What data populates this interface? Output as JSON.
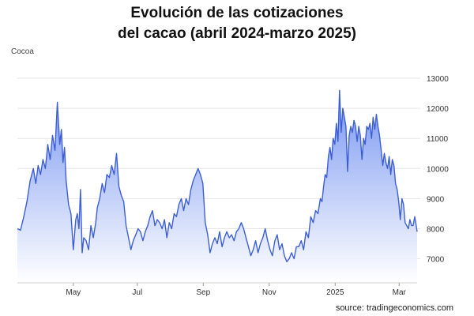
{
  "chart_data": {
    "type": "area",
    "title": "Evolución de las cotizaciones",
    "subtitle": "del cacao (abril 2024-marzo 2025)",
    "series_label": "Cocoa",
    "source": "source: tradingeconomics.com",
    "xlabel": "",
    "ylabel": "",
    "ylim": [
      6200,
      13500
    ],
    "y_ticks": [
      7000,
      8000,
      9000,
      10000,
      11000,
      12000,
      13000
    ],
    "y_axis_position": "right",
    "grid": "horizontal",
    "legend": "none",
    "colors": {
      "line": "#3d5fd6",
      "fill_top": "#6f8ff0",
      "fill_bottom": "#ffffff",
      "grid": "#e6e6e6"
    },
    "x_ticks": [
      {
        "label": "May",
        "t": 0.14
      },
      {
        "label": "Jul",
        "t": 0.3
      },
      {
        "label": "Sep",
        "t": 0.465
      },
      {
        "label": "Nov",
        "t": 0.63
      },
      {
        "label": "2025",
        "t": 0.795
      },
      {
        "label": "Mar",
        "t": 0.955
      }
    ],
    "series": [
      {
        "t": [
          0.0,
          0.008,
          0.016,
          0.024,
          0.032,
          0.04,
          0.046,
          0.052,
          0.058,
          0.064,
          0.07,
          0.076,
          0.082,
          0.088,
          0.094,
          0.1,
          0.106,
          0.11,
          0.114,
          0.118,
          0.122,
          0.128,
          0.134,
          0.14,
          0.146,
          0.15,
          0.154,
          0.158,
          0.162,
          0.166,
          0.172,
          0.178,
          0.184,
          0.19,
          0.196,
          0.2,
          0.206,
          0.212,
          0.218,
          0.224,
          0.23,
          0.236,
          0.242,
          0.248,
          0.254,
          0.26,
          0.266,
          0.272,
          0.278,
          0.284,
          0.29,
          0.296,
          0.302,
          0.308,
          0.314,
          0.32,
          0.326,
          0.332,
          0.338,
          0.344,
          0.35,
          0.356,
          0.362,
          0.368,
          0.374,
          0.38,
          0.386,
          0.392,
          0.398,
          0.404,
          0.41,
          0.416,
          0.422,
          0.428,
          0.434,
          0.44,
          0.446,
          0.452,
          0.458,
          0.464,
          0.47,
          0.476,
          0.482,
          0.488,
          0.494,
          0.5,
          0.506,
          0.512,
          0.518,
          0.524,
          0.53,
          0.536,
          0.542,
          0.548,
          0.554,
          0.56,
          0.566,
          0.572,
          0.578,
          0.584,
          0.59,
          0.596,
          0.602,
          0.608,
          0.614,
          0.62,
          0.626,
          0.632,
          0.638,
          0.644,
          0.65,
          0.656,
          0.662,
          0.668,
          0.674,
          0.68,
          0.686,
          0.692,
          0.698,
          0.704,
          0.71,
          0.716,
          0.722,
          0.728,
          0.734,
          0.74,
          0.746,
          0.752,
          0.758,
          0.762,
          0.766,
          0.77,
          0.774,
          0.778,
          0.782,
          0.786,
          0.79,
          0.794,
          0.798,
          0.802,
          0.806,
          0.81,
          0.814,
          0.818,
          0.822,
          0.826,
          0.83,
          0.834,
          0.838,
          0.842,
          0.846,
          0.85,
          0.854,
          0.858,
          0.862,
          0.866,
          0.87,
          0.874,
          0.878,
          0.882,
          0.886,
          0.89,
          0.894,
          0.898,
          0.902,
          0.906,
          0.91,
          0.914,
          0.918,
          0.922,
          0.926,
          0.93,
          0.934,
          0.938,
          0.942,
          0.946,
          0.95,
          0.954,
          0.958,
          0.962,
          0.966,
          0.97,
          0.974,
          0.978,
          0.982,
          0.986,
          0.99,
          0.994,
          1.0
        ],
        "values": [
          8000,
          7950,
          8400,
          8900,
          9600,
          10000,
          9500,
          10100,
          9800,
          10300,
          10000,
          10800,
          10300,
          11100,
          10600,
          12200,
          10800,
          11300,
          10200,
          10700,
          9600,
          8800,
          8500,
          7300,
          8300,
          8500,
          8000,
          9300,
          7200,
          7700,
          7600,
          7300,
          8100,
          7700,
          8200,
          8700,
          9000,
          9500,
          9200,
          9800,
          9700,
          10100,
          9800,
          10500,
          9400,
          9100,
          8900,
          8100,
          7700,
          7300,
          7600,
          7800,
          8000,
          7900,
          7600,
          7900,
          8100,
          8400,
          8600,
          8100,
          8300,
          8200,
          8000,
          8300,
          7700,
          8200,
          8000,
          8500,
          8400,
          8800,
          9000,
          8600,
          9000,
          8800,
          9300,
          9600,
          9800,
          10000,
          9800,
          9500,
          8200,
          7800,
          7200,
          7500,
          7700,
          7500,
          7900,
          7400,
          7700,
          7900,
          7700,
          7800,
          7600,
          7900,
          8000,
          8200,
          8000,
          7700,
          7400,
          7100,
          7300,
          7600,
          7200,
          7500,
          7700,
          8000,
          7600,
          7300,
          7100,
          7600,
          7800,
          7300,
          7500,
          7100,
          6900,
          7000,
          7200,
          7000,
          7400,
          7400,
          7600,
          7300,
          7900,
          7700,
          8400,
          8200,
          8600,
          8500,
          9000,
          8900,
          9400,
          9800,
          9700,
          10400,
          10700,
          10300,
          11000,
          10800,
          11500,
          10900,
          12600,
          11200,
          12000,
          11700,
          11400,
          9900,
          11100,
          11400,
          11200,
          11600,
          11400,
          10900,
          11400,
          11100,
          10300,
          11000,
          10800,
          11400,
          11300,
          11500,
          11000,
          11700,
          11300,
          11800,
          11400,
          11100,
          10600,
          10100,
          10500,
          10200,
          10000,
          10400,
          9800,
          10300,
          10100,
          9500,
          9300,
          8900,
          8300,
          9000,
          8800,
          8200,
          8100,
          8000,
          8300,
          8100,
          8100,
          8400,
          7900
        ]
      }
    ]
  }
}
